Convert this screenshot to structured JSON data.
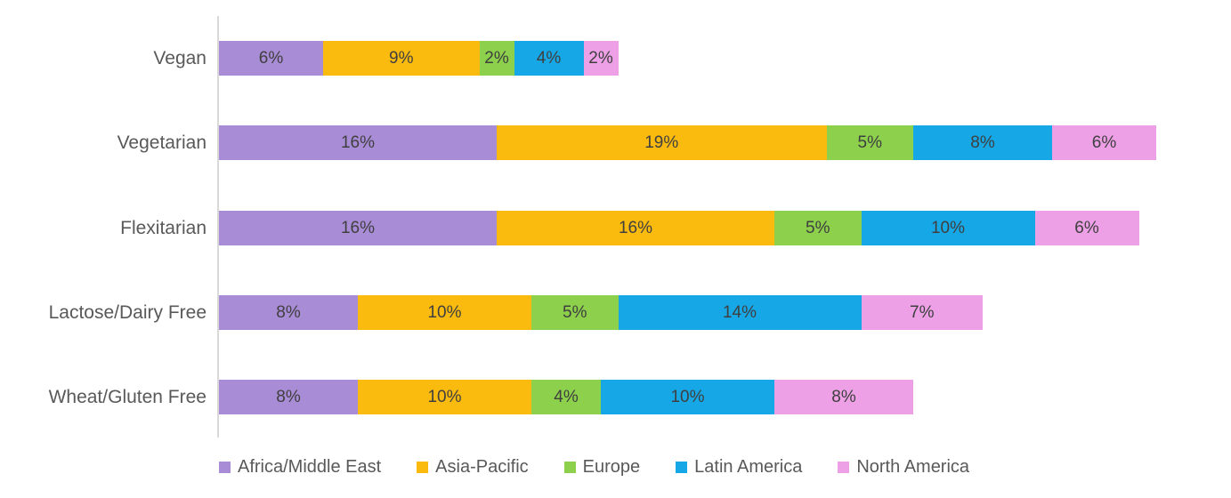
{
  "chart_data": {
    "type": "bar",
    "orientation": "horizontal",
    "stacked": true,
    "title": "",
    "xlabel": "",
    "ylabel": "",
    "data_label_suffix": "%",
    "legend_position": "bottom",
    "grid": false,
    "categories": [
      "Vegan",
      "Vegetarian",
      "Flexitarian",
      "Lactose/Dairy Free",
      "Wheat/Gluten Free"
    ],
    "series": [
      {
        "name": "Africa/Middle East",
        "color": "#A98CD6",
        "values": [
          6,
          16,
          16,
          8,
          8
        ]
      },
      {
        "name": "Asia-Pacific",
        "color": "#FBBB0E",
        "values": [
          9,
          19,
          16,
          10,
          10
        ]
      },
      {
        "name": "Europe",
        "color": "#8CD04C",
        "values": [
          2,
          5,
          5,
          5,
          4
        ]
      },
      {
        "name": "Latin America",
        "color": "#16A7E6",
        "values": [
          4,
          8,
          10,
          14,
          10
        ]
      },
      {
        "name": "North America",
        "color": "#EDA0E6",
        "values": [
          2,
          6,
          6,
          7,
          8
        ]
      }
    ],
    "totals_percent": [
      23,
      54,
      53,
      44,
      40
    ],
    "xlim_percent": [
      0,
      58
    ]
  },
  "colors": {
    "axis_line": "#D9D9D9",
    "category_label_text": "#595959",
    "data_label_text": "#3F3F3F",
    "legend_text": "#595959",
    "background": "#FFFFFF"
  }
}
